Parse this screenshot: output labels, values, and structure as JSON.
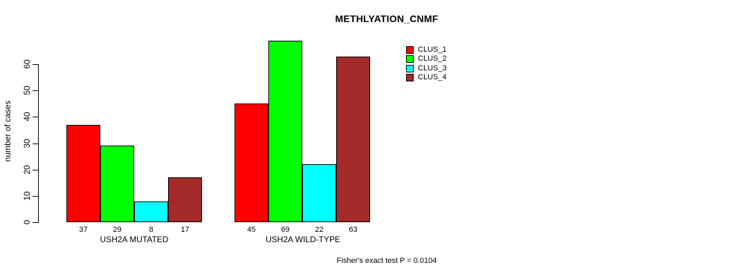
{
  "chart_data": {
    "type": "bar",
    "title": "METHLYATION_CNMF",
    "ylabel": "number of cases",
    "xlabel": "",
    "ylim": [
      0,
      60
    ],
    "yticks": [
      0,
      10,
      20,
      30,
      40,
      50,
      60
    ],
    "grid": false,
    "legend_position": "top-right",
    "groups": [
      "USH2A MUTATED",
      "USH2A WILD-TYPE"
    ],
    "series": [
      {
        "name": "CLUS_1",
        "color": "#ff0000",
        "values": [
          37,
          45
        ]
      },
      {
        "name": "CLUS_2",
        "color": "#00ff00",
        "values": [
          29,
          69
        ]
      },
      {
        "name": "CLUS_3",
        "color": "#00ffff",
        "values": [
          8,
          22
        ]
      },
      {
        "name": "CLUS_4",
        "color": "#a52a2a",
        "values": [
          17,
          63
        ]
      }
    ],
    "bar_labels": [
      [
        37,
        29,
        8,
        17
      ],
      [
        45,
        69,
        22,
        63
      ]
    ],
    "annotation": "Fisher's exact test P = 0.0104"
  }
}
